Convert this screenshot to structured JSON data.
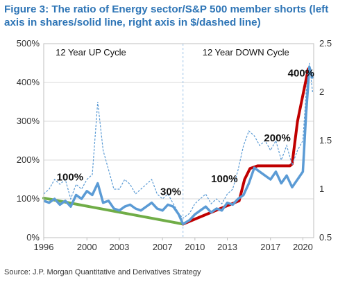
{
  "title": "Figure 3: The ratio of Energy sector/S&P 500 member shorts (left axis in shares/solid line, right axis in $/dashed line)",
  "source": "Source: J.P. Morgan Quantitative and Derivatives Strategy",
  "chart_data": {
    "type": "line",
    "xlim": [
      1996,
      2021
    ],
    "ylim_left": [
      0,
      500
    ],
    "ylim_right": [
      0.5,
      2.5
    ],
    "left_ticks": [
      "0%",
      "100%",
      "200%",
      "300%",
      "400%",
      "500%"
    ],
    "right_ticks": [
      "0.5",
      "1",
      "1.5",
      "2",
      "2.5"
    ],
    "x_ticks": [
      "1996",
      "2000",
      "2003",
      "2007",
      "2010",
      "2013",
      "2017",
      "2020"
    ],
    "x_tick_values": [
      1996,
      2000,
      2003,
      2007,
      2010,
      2013,
      2017,
      2020
    ],
    "grid": "horizontal",
    "colors": {
      "solid_series": "#5b9bd5",
      "dashed_series": "#5b9bd5",
      "up_trend": "#70ad47",
      "down_trend": "#c00000",
      "title": "#2e75b6"
    },
    "series": [
      {
        "axis": "left",
        "style": "solid",
        "x": [
          1996,
          1996.5,
          1997,
          1997.5,
          1998,
          1998.5,
          1999,
          1999.5,
          2000,
          2000.5,
          2001,
          2001.5,
          2002,
          2002.5,
          2003,
          2003.5,
          2004,
          2004.5,
          2005,
          2005.5,
          2006,
          2006.5,
          2007,
          2007.5,
          2008,
          2008.5,
          2008.9,
          2009.5,
          2010,
          2010.5,
          2011,
          2011.5,
          2012,
          2012.5,
          2013,
          2013.5,
          2014,
          2014.5,
          2015,
          2015.5,
          2016,
          2016.5,
          2017,
          2017.5,
          2018,
          2018.5,
          2019,
          2019.5,
          2020,
          2020.3,
          2020.6,
          2020.9
        ],
        "values": [
          95,
          90,
          100,
          85,
          95,
          80,
          110,
          100,
          120,
          110,
          140,
          90,
          95,
          75,
          70,
          80,
          85,
          75,
          70,
          80,
          90,
          75,
          70,
          85,
          80,
          60,
          35,
          45,
          60,
          70,
          80,
          65,
          75,
          70,
          90,
          85,
          100,
          110,
          140,
          180,
          170,
          160,
          150,
          170,
          140,
          160,
          130,
          150,
          170,
          320,
          440,
          410
        ]
      },
      {
        "axis": "right",
        "style": "dashed",
        "x": [
          1996,
          1996.5,
          1997,
          1997.5,
          1998,
          1998.5,
          1999,
          1999.5,
          2000,
          2000.5,
          2001,
          2001.5,
          2002,
          2002.5,
          2003,
          2003.5,
          2004,
          2004.5,
          2005,
          2005.5,
          2006,
          2006.5,
          2007,
          2007.5,
          2008,
          2008.5,
          2008.9,
          2009.5,
          2010,
          2010.5,
          2011,
          2011.5,
          2012,
          2012.5,
          2013,
          2013.5,
          2014,
          2014.5,
          2015,
          2015.5,
          2016,
          2016.5,
          2017,
          2017.5,
          2018,
          2018.5,
          2019,
          2019.5,
          2020,
          2020.3,
          2020.6,
          2020.9
        ],
        "values": [
          0.95,
          1.0,
          1.1,
          1.05,
          1.1,
          0.9,
          1.05,
          1.0,
          1.1,
          1.15,
          1.9,
          1.4,
          1.2,
          1.0,
          1.0,
          1.1,
          1.05,
          0.95,
          1.0,
          1.05,
          1.1,
          0.95,
          0.9,
          0.95,
          0.85,
          0.75,
          0.7,
          0.75,
          0.85,
          0.9,
          0.95,
          0.85,
          0.9,
          0.85,
          0.95,
          1.0,
          1.2,
          1.45,
          1.6,
          1.55,
          1.45,
          1.5,
          1.4,
          1.5,
          1.3,
          1.45,
          1.25,
          1.4,
          1.5,
          2.0,
          2.3,
          2.0
        ]
      }
    ],
    "trend_lines": [
      {
        "color": "green",
        "x": [
          1996,
          2008.9
        ],
        "values": [
          102,
          35
        ]
      },
      {
        "color": "red",
        "x": [
          2008.9,
          2014.1,
          2014.6,
          2015.1,
          2015.8,
          2016.8,
          2018.8,
          2019.0,
          2019.5,
          2020.5
        ],
        "values": [
          35,
          95,
          150,
          178,
          185,
          185,
          185,
          190,
          300,
          435
        ]
      }
    ],
    "divider_x": 2008.9,
    "annotations": [
      {
        "text": "12 Year UP Cycle",
        "x": 1997.1,
        "y": 470
      },
      {
        "text": "12 Year DOWN Cycle",
        "x": 2010.7,
        "y": 470
      },
      {
        "text": "100%",
        "x": 1997.2,
        "y": 147,
        "bold": true
      },
      {
        "text": "30%",
        "x": 2006.8,
        "y": 110,
        "bold": true
      },
      {
        "text": "100%",
        "x": 2011.5,
        "y": 143,
        "bold": true
      },
      {
        "text": "200%",
        "x": 2016.4,
        "y": 248,
        "bold": true
      },
      {
        "text": "400%",
        "x": 2018.6,
        "y": 415,
        "bold": true
      }
    ]
  }
}
